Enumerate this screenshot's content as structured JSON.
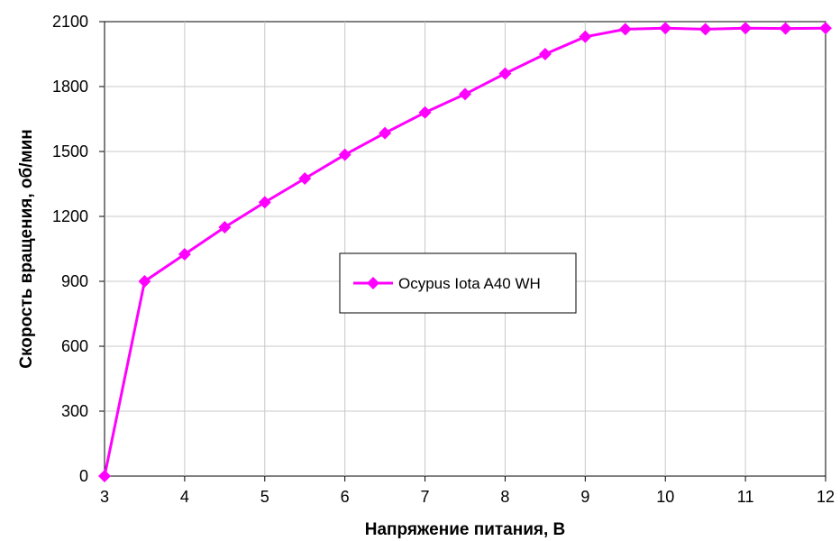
{
  "chart_data": {
    "type": "line",
    "xlabel": "Напряжение питания, В",
    "ylabel": "Скорость вращения, об/мин",
    "xlim": [
      3,
      12
    ],
    "ylim": [
      0,
      2100
    ],
    "xticks": [
      3,
      4,
      5,
      6,
      7,
      8,
      9,
      10,
      11,
      12
    ],
    "yticks": [
      0,
      300,
      600,
      900,
      1200,
      1500,
      1800,
      2100
    ],
    "grid": true,
    "legend_position": "center",
    "series": [
      {
        "name": "Ocypus Iota A40 WH",
        "color": "#ff00ff",
        "marker": "diamond",
        "x": [
          3,
          3.5,
          4,
          4.5,
          5,
          5.5,
          6,
          6.5,
          7,
          7.5,
          8,
          8.5,
          9,
          9.5,
          10,
          10.5,
          11,
          11.5,
          12
        ],
        "y": [
          0,
          900,
          1025,
          1150,
          1265,
          1375,
          1485,
          1585,
          1680,
          1765,
          1860,
          1950,
          2030,
          2065,
          2070,
          2065,
          2070,
          2068,
          2070
        ]
      }
    ]
  }
}
